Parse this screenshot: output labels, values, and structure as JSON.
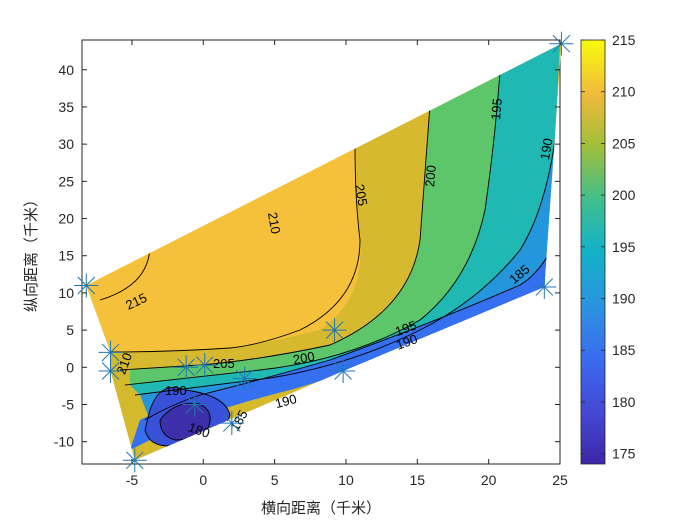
{
  "chart_data": {
    "type": "contour",
    "xlabel": "横向距离（千米）",
    "ylabel": "纵向距离（千米）",
    "xlim": [
      -8.5,
      25
    ],
    "ylim": [
      -13,
      44
    ],
    "xticks": [
      "-5",
      "0",
      "5",
      "10",
      "15",
      "20",
      "25"
    ],
    "yticks": [
      "-10",
      "-5",
      "0",
      "5",
      "10",
      "15",
      "20",
      "25",
      "30",
      "35",
      "40"
    ],
    "colorbar": {
      "range": [
        174,
        215
      ],
      "ticks": [
        "175",
        "180",
        "185",
        "190",
        "195",
        "200",
        "205",
        "210",
        "215"
      ]
    },
    "contour_labels": [
      "215",
      "210",
      "210",
      "205",
      "205",
      "200",
      "200",
      "195",
      "195",
      "190",
      "190",
      "190",
      "185",
      "185",
      "180",
      "190"
    ],
    "boundary": [
      [
        -8.2,
        11
      ],
      [
        -6.5,
        2
      ],
      [
        -6.5,
        -0.5
      ],
      [
        -4.8,
        -12.5
      ],
      [
        9.8,
        -0.5
      ],
      [
        23.9,
        10.8
      ],
      [
        25.1,
        43.5
      ]
    ],
    "stations": [
      [
        -8.2,
        11
      ],
      [
        -6.5,
        2
      ],
      [
        -6.5,
        -0.5
      ],
      [
        -4.8,
        -12.5
      ],
      [
        -1.2,
        0
      ],
      [
        0.1,
        0.3
      ],
      [
        -0.6,
        -5
      ],
      [
        2.0,
        -7.5
      ],
      [
        2.9,
        -1.5
      ],
      [
        9.2,
        5
      ],
      [
        9.8,
        -0.5
      ],
      [
        23.9,
        10.8
      ],
      [
        25.1,
        43.5
      ]
    ],
    "colors": {
      "station": "#1f77b4",
      "contour": "#000000"
    }
  }
}
